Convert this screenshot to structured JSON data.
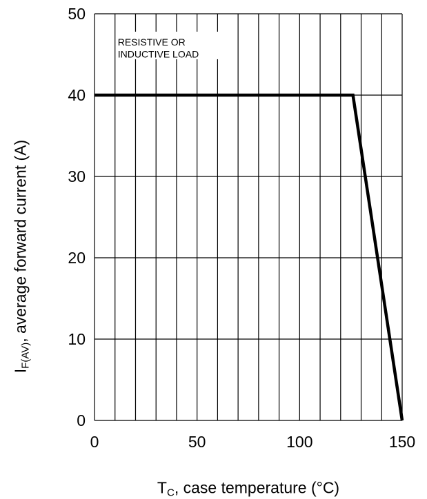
{
  "chart_data": {
    "type": "line",
    "title": "",
    "xlabel": {
      "symbol": "T",
      "subscript": "C",
      "text": ", case temperature (°C)"
    },
    "ylabel": {
      "symbol": "I",
      "subscript": "F(AV)",
      "text": ", average forward current (A)"
    },
    "xlim": [
      0,
      150
    ],
    "ylim": [
      0,
      50
    ],
    "x_ticks": [
      0,
      50,
      100,
      150
    ],
    "y_ticks": [
      0,
      10,
      20,
      30,
      40,
      50
    ],
    "grid": {
      "x_step": 10,
      "y_step": 10
    },
    "annotation": [
      "RESISTIVE OR",
      "INDUCTIVE LOAD"
    ],
    "series": [
      {
        "x": [
          0,
          126,
          150
        ],
        "y": [
          40,
          40,
          0
        ]
      }
    ]
  }
}
